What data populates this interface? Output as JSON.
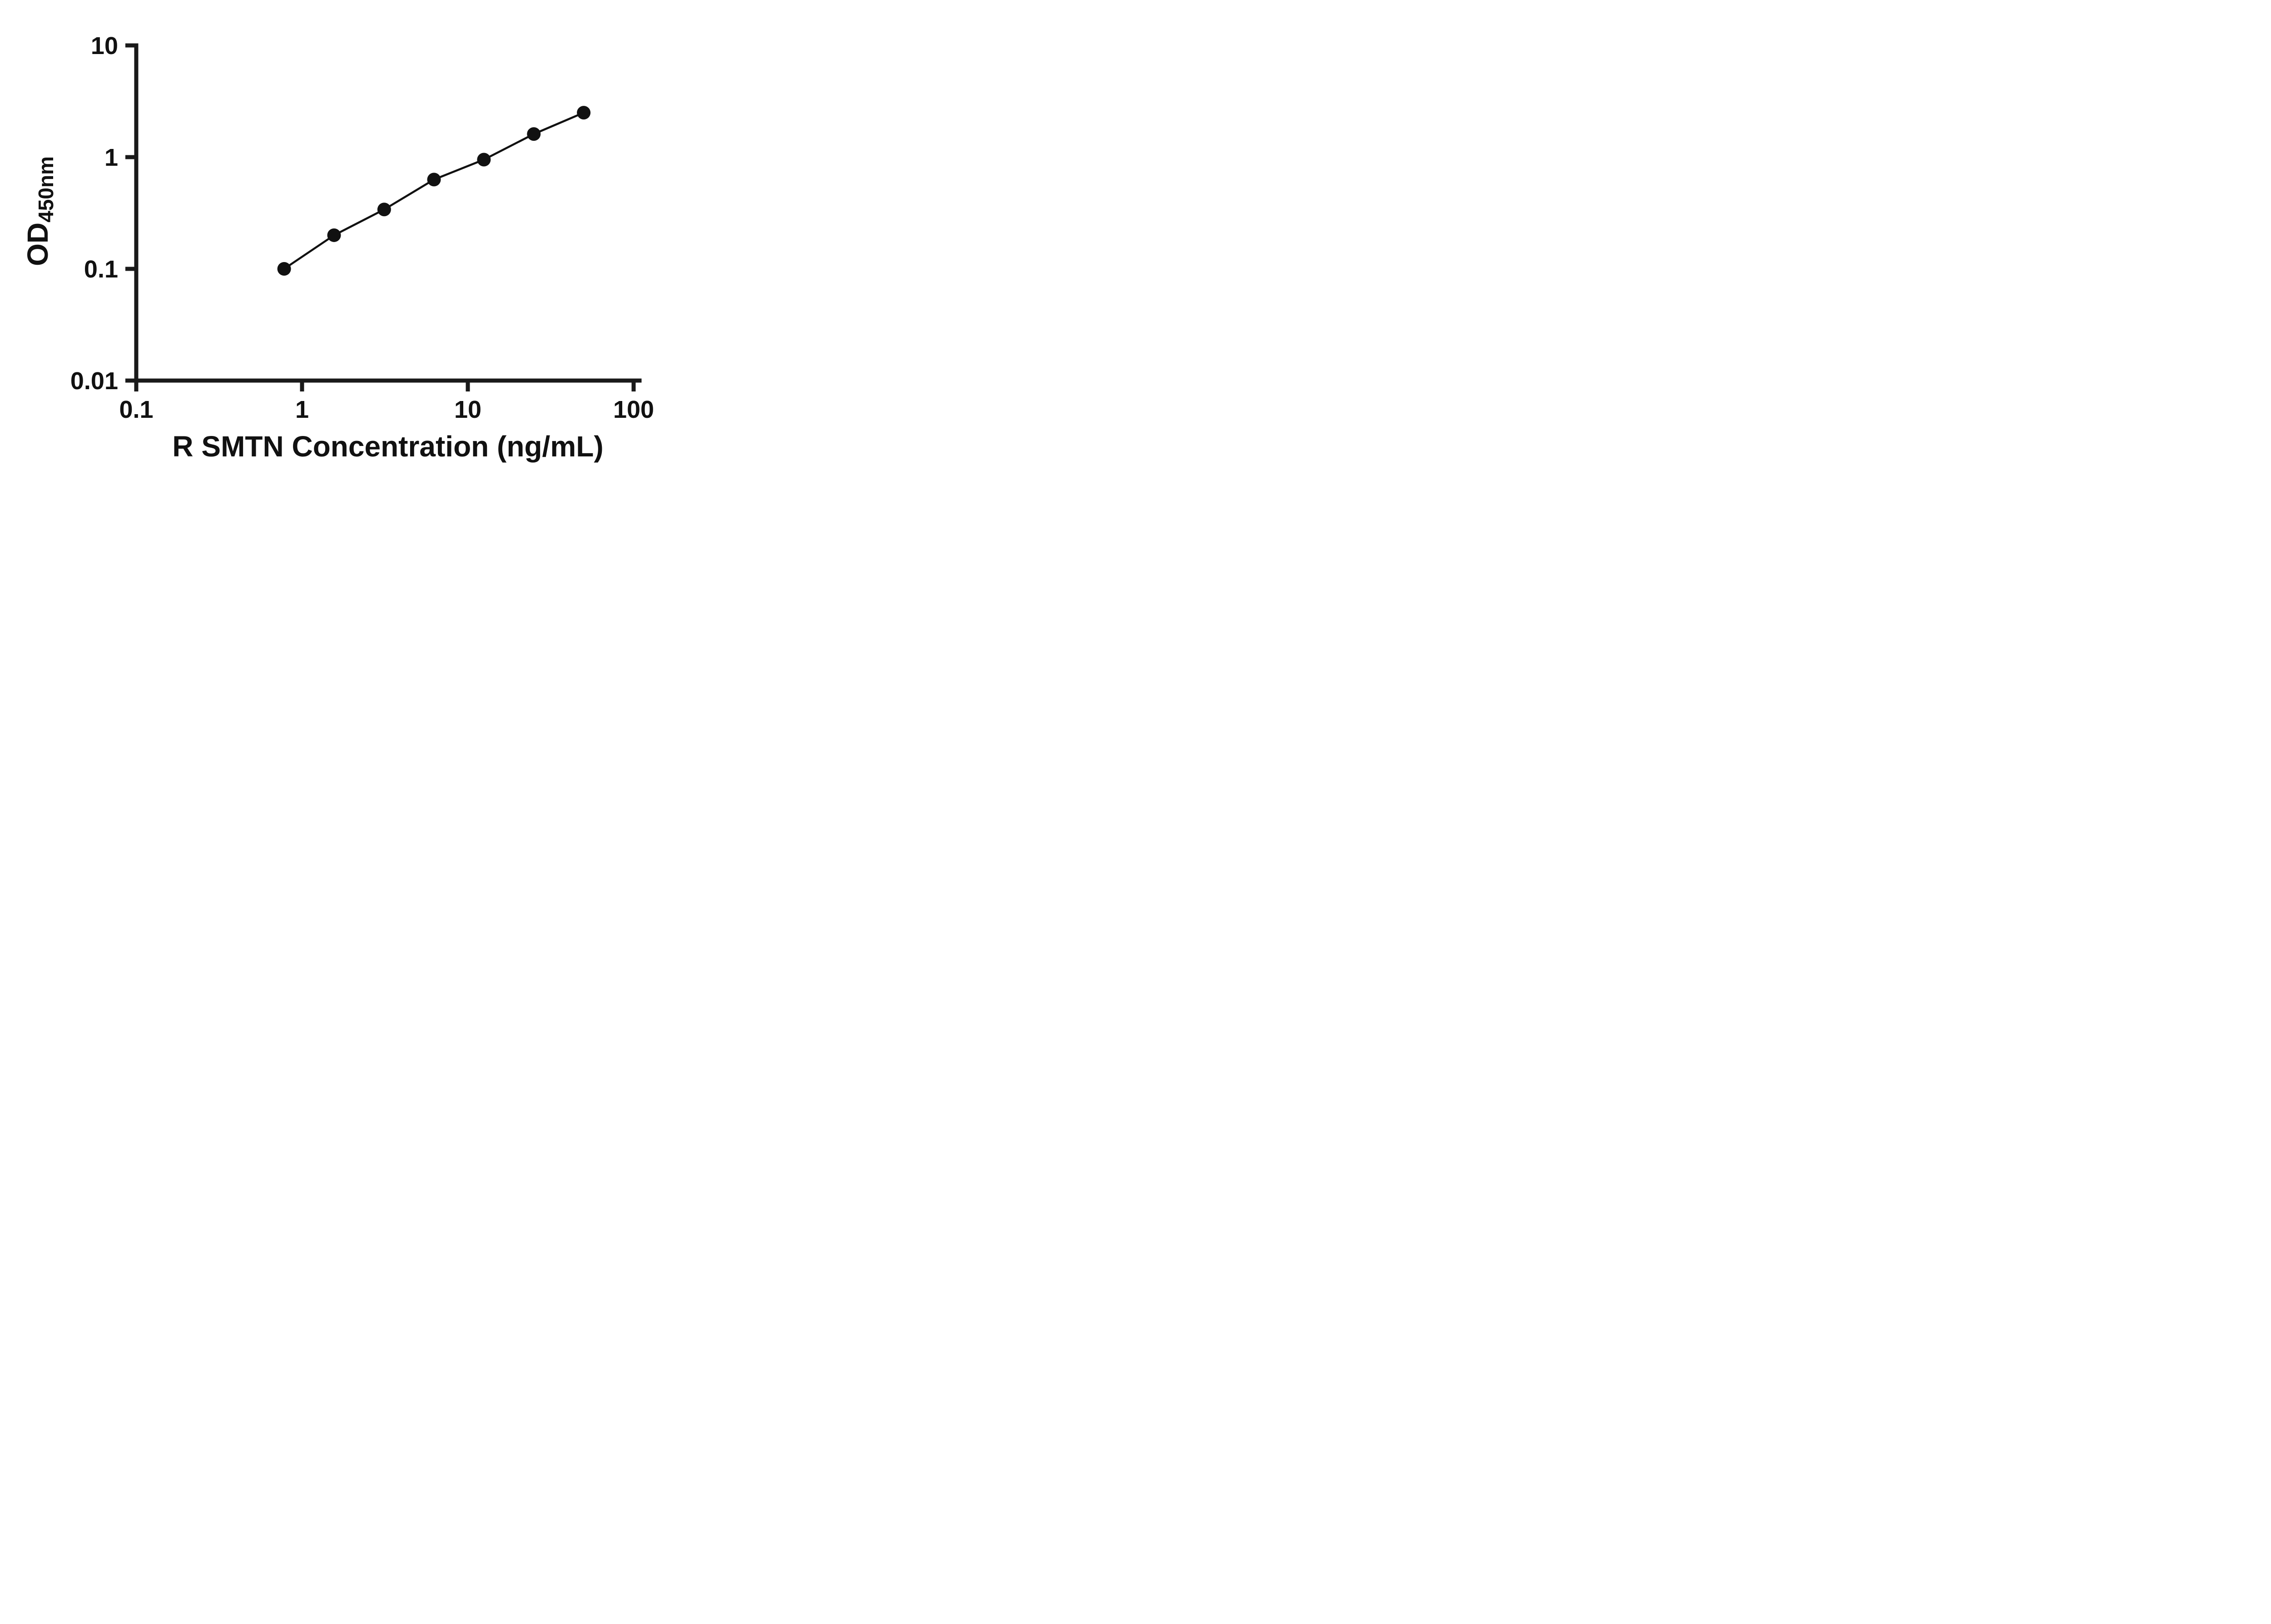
{
  "page": {
    "background_color": "#ffffff",
    "foreground_color": "#111111"
  },
  "chart_data": {
    "type": "scatter",
    "title": "",
    "xlabel": "R SMTN Concentration (ng/mL)",
    "ylabel": "OD",
    "ylabel_sub": "450nm",
    "x_scale": "log",
    "y_scale": "log",
    "xlim": [
      0.1,
      100
    ],
    "ylim": [
      0.01,
      10
    ],
    "x_ticks": [
      0.1,
      1,
      10,
      100
    ],
    "x_tick_labels": [
      "0.1",
      "1",
      "10",
      "100"
    ],
    "y_ticks": [
      0.01,
      0.1,
      1,
      10
    ],
    "y_tick_labels": [
      "0.01",
      "0.1",
      "1",
      "10"
    ],
    "x": [
      0.78,
      1.56,
      3.13,
      6.25,
      12.5,
      25,
      50
    ],
    "y": [
      0.1,
      0.2,
      0.34,
      0.63,
      0.95,
      1.61,
      2.5
    ],
    "grid": false,
    "legend": "none",
    "marker_color": "#111111",
    "line_color": "#111111",
    "axis_color": "#1a1a1a"
  }
}
